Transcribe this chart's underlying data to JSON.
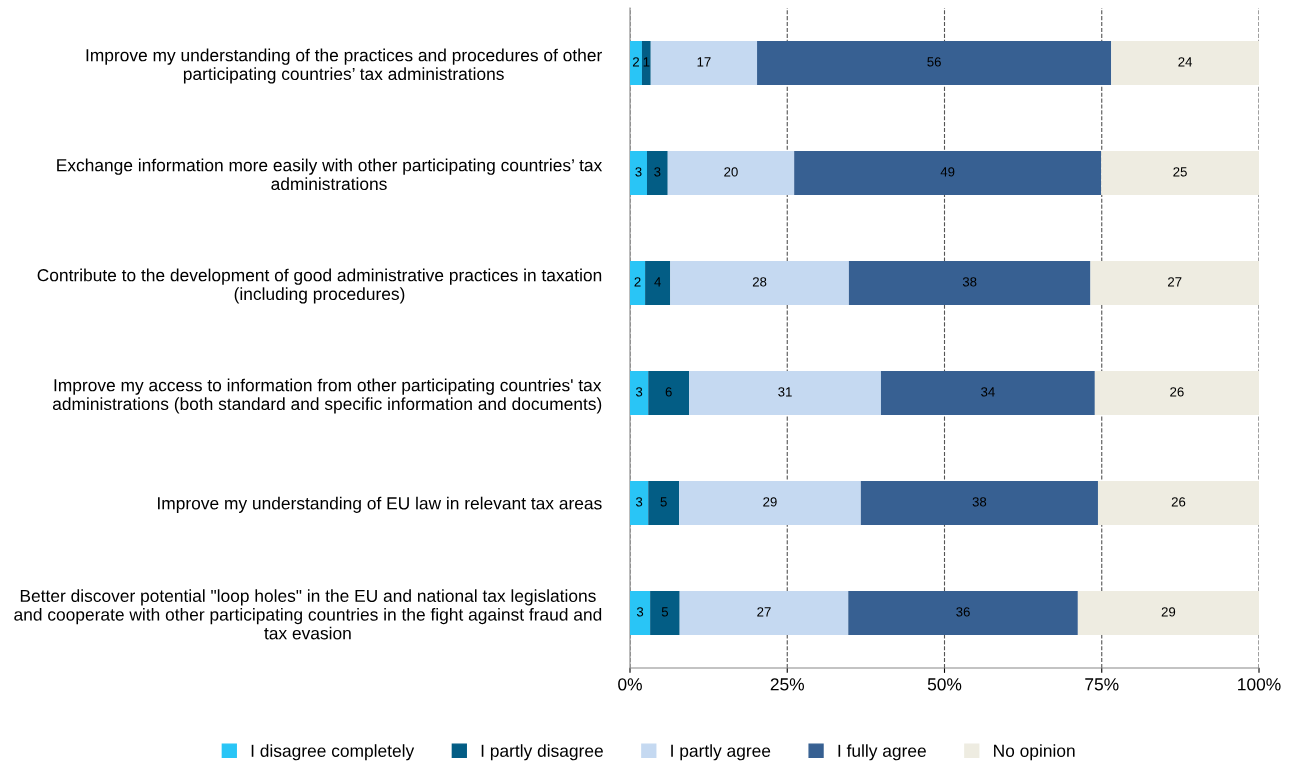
{
  "chart_data": {
    "type": "bar",
    "orientation": "horizontal",
    "stacked": true,
    "categories": [
      "Improve my understanding of the practices and procedures of other participating countries’ tax administrations",
      "Exchange information more easily with other participating countries’ tax administrations",
      "Contribute to the development of good administrative practices in taxation (including procedures)",
      "Improve my access to information from other participating countries' tax administrations (both standard and specific information and documents)",
      "Improve my understanding of EU law in relevant tax areas",
      "Better discover potential \"loop holes\" in the EU and national tax legislations and cooperate with other participating countries in the fight against fraud and tax evasion"
    ],
    "series": [
      {
        "name": "I disagree completely",
        "color": "#29c5f6",
        "values": [
          1.9,
          2.7,
          2.4,
          2.9,
          2.9,
          3.2
        ],
        "value_labels": [
          "2",
          "3",
          "2",
          "3",
          "3",
          "3"
        ]
      },
      {
        "name": "I partly disagree",
        "color": "#035d85",
        "values": [
          1.4,
          3.3,
          4.0,
          6.5,
          4.9,
          4.7
        ],
        "value_labels": [
          "1",
          "3",
          "4",
          "6",
          "5",
          "5"
        ]
      },
      {
        "name": "I partly agree",
        "color": "#c5d9f1",
        "values": [
          16.9,
          20.1,
          28.4,
          30.5,
          28.9,
          26.8
        ],
        "value_labels": [
          "17",
          "20",
          "28",
          "31",
          "29",
          "27"
        ]
      },
      {
        "name": "I fully agree",
        "color": "#376092",
        "values": [
          56.3,
          48.8,
          38.4,
          34.0,
          37.7,
          36.5
        ],
        "value_labels": [
          "56",
          "49",
          "38",
          "34",
          "38",
          "36"
        ]
      },
      {
        "name": "No opinion",
        "color": "#eeece1",
        "values": [
          23.5,
          25.1,
          26.8,
          26.1,
          25.6,
          28.8
        ],
        "value_labels": [
          "24",
          "25",
          "27",
          "26",
          "26",
          "29"
        ]
      }
    ],
    "xlim": [
      0,
      100
    ],
    "xticks": [
      {
        "value": 0,
        "label": "0%"
      },
      {
        "value": 25,
        "label": "25%"
      },
      {
        "value": 50,
        "label": "50%"
      },
      {
        "value": 75,
        "label": "75%"
      },
      {
        "value": 100,
        "label": "100%"
      }
    ],
    "grid": "x",
    "legend": "bottom"
  }
}
